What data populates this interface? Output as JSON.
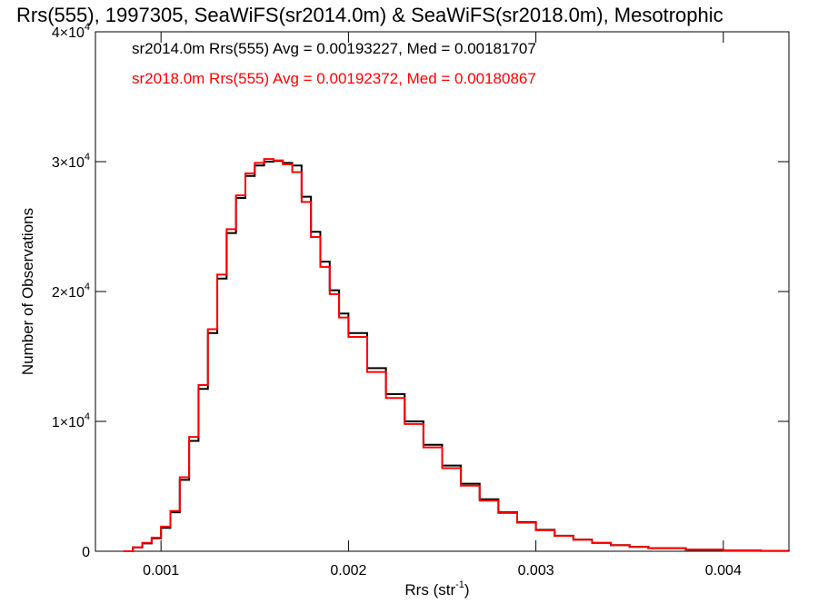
{
  "chart_data": {
    "type": "line",
    "style": "histogram-step",
    "title": "Rrs(555), 1997305, SeaWiFS(sr2014.0m) & SeaWiFS(sr2018.0m), Mesotrophic",
    "xlabel": "Rrs (str",
    "xlabel_sup": "-1",
    "xlabel_close": ")",
    "ylabel": "Number of Observations",
    "xlim": [
      0.00065,
      0.00435
    ],
    "ylim": [
      0,
      40000
    ],
    "xticks": [
      {
        "value": 0.001,
        "label": "0.001"
      },
      {
        "value": 0.002,
        "label": "0.002"
      },
      {
        "value": 0.003,
        "label": "0.003"
      },
      {
        "value": 0.004,
        "label": "0.004"
      }
    ],
    "yticks": [
      {
        "value": 0,
        "label": "0"
      },
      {
        "value": 10000,
        "mant": "1",
        "times": "×10",
        "exp": "4"
      },
      {
        "value": 20000,
        "mant": "2",
        "times": "×10",
        "exp": "4"
      },
      {
        "value": 30000,
        "mant": "3",
        "times": "×10",
        "exp": "4"
      },
      {
        "value": 40000,
        "mant": "4",
        "times": "×10",
        "exp": "4"
      }
    ],
    "grid": false,
    "legend_placement": "top-left",
    "annotations": [
      {
        "text": "sr2014.0m Rrs(555) Avg = 0.00193227, Med = 0.00181707",
        "color": "#000000"
      },
      {
        "text": "sr2018.0m Rrs(555) Avg = 0.00192372, Med = 0.00180867",
        "color": "#ff0000"
      }
    ],
    "series": [
      {
        "color": "#000000",
        "x": [
          0.0008,
          0.00085,
          0.0009,
          0.00095,
          0.001,
          0.00105,
          0.0011,
          0.00115,
          0.0012,
          0.00125,
          0.0013,
          0.00135,
          0.0014,
          0.00145,
          0.0015,
          0.00155,
          0.0016,
          0.00165,
          0.0017,
          0.00175,
          0.0018,
          0.00185,
          0.0019,
          0.00195,
          0.002,
          0.0021,
          0.0022,
          0.0023,
          0.0024,
          0.0025,
          0.0026,
          0.0027,
          0.0028,
          0.0029,
          0.003,
          0.0031,
          0.0032,
          0.0033,
          0.0034,
          0.0035,
          0.0036,
          0.0038,
          0.004,
          0.0042,
          0.00435
        ],
        "y": [
          0,
          300,
          600,
          1000,
          1800,
          3000,
          5500,
          8500,
          12500,
          16800,
          21000,
          24500,
          27200,
          28900,
          29700,
          30000,
          30050,
          29900,
          29700,
          27300,
          24600,
          22300,
          20100,
          18300,
          16800,
          14100,
          12100,
          10000,
          8200,
          6600,
          5200,
          4000,
          3000,
          2250,
          1650,
          1200,
          900,
          650,
          470,
          340,
          240,
          120,
          60,
          30,
          10
        ]
      },
      {
        "color": "#ff0000",
        "x": [
          0.0008,
          0.00085,
          0.0009,
          0.00095,
          0.001,
          0.00105,
          0.0011,
          0.00115,
          0.0012,
          0.00125,
          0.0013,
          0.00135,
          0.0014,
          0.00145,
          0.0015,
          0.00155,
          0.0016,
          0.00165,
          0.0017,
          0.00175,
          0.0018,
          0.00185,
          0.0019,
          0.00195,
          0.002,
          0.0021,
          0.0022,
          0.0023,
          0.0024,
          0.0025,
          0.0026,
          0.0027,
          0.0028,
          0.0029,
          0.003,
          0.0031,
          0.0032,
          0.0033,
          0.0034,
          0.0035,
          0.0036,
          0.0038,
          0.004,
          0.0042,
          0.00435
        ],
        "y": [
          0,
          300,
          650,
          1050,
          1900,
          3100,
          5700,
          8800,
          12800,
          17100,
          21300,
          24800,
          27400,
          29100,
          29900,
          30200,
          30100,
          29800,
          29200,
          26900,
          24200,
          21900,
          19800,
          18000,
          16500,
          13800,
          11800,
          9800,
          8000,
          6400,
          5050,
          3900,
          2950,
          2200,
          1620,
          1180,
          880,
          640,
          460,
          330,
          235,
          118,
          58,
          28,
          8
        ]
      }
    ]
  }
}
